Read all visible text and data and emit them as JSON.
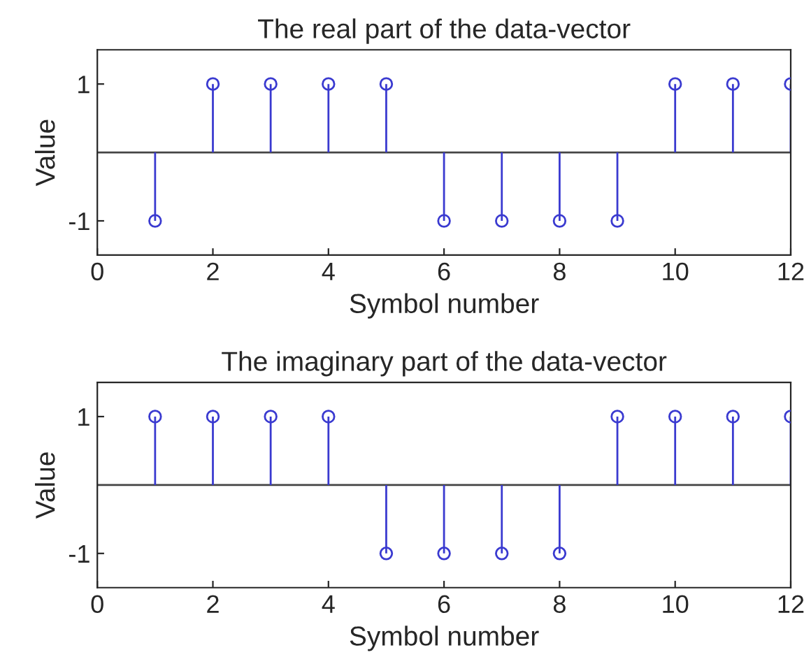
{
  "chart_data": [
    {
      "type": "lollipop",
      "title": "The real part of the data-vector",
      "xlabel": "Symbol number",
      "ylabel": "Value",
      "x": [
        1,
        2,
        3,
        4,
        5,
        6,
        7,
        8,
        9,
        10,
        11,
        12
      ],
      "series": [
        {
          "color": "#3a3ad0",
          "values": [
            -1,
            1,
            1,
            1,
            1,
            -1,
            -1,
            -1,
            -1,
            1,
            1,
            1
          ]
        }
      ],
      "xlim": [
        0,
        12
      ],
      "xticks": [
        0,
        2,
        4,
        6,
        8,
        10,
        12
      ],
      "ylim": [
        -1.5,
        1.5
      ],
      "yticks": [
        {
          "value": -1,
          "label": "-1"
        },
        1
      ],
      "marker": "circle",
      "grid": false
    },
    {
      "type": "lollipop",
      "title": "The imaginary part of the data-vector",
      "xlabel": "Symbol number",
      "ylabel": "Value",
      "x": [
        1,
        2,
        3,
        4,
        5,
        6,
        7,
        8,
        9,
        10,
        11,
        12
      ],
      "series": [
        {
          "color": "#3a3ad0",
          "values": [
            1,
            1,
            1,
            1,
            -1,
            -1,
            -1,
            -1,
            1,
            1,
            1,
            1
          ]
        }
      ],
      "xlim": [
        0,
        12
      ],
      "xticks": [
        0,
        2,
        4,
        6,
        8,
        10,
        12
      ],
      "ylim": [
        -1.5,
        1.5
      ],
      "yticks": [
        {
          "value": -1,
          "label": "-1"
        },
        1
      ],
      "marker": "circle",
      "grid": false
    }
  ]
}
